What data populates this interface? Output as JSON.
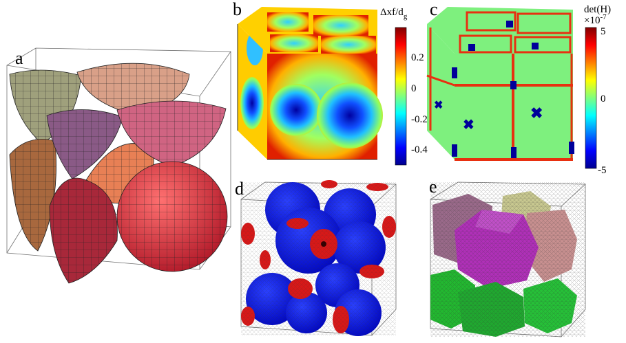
{
  "panels": {
    "a": {
      "label": "a"
    },
    "b": {
      "label": "b"
    },
    "c": {
      "label": "c"
    },
    "d": {
      "label": "d"
    },
    "e": {
      "label": "e"
    }
  },
  "colorbar_b": {
    "title": "Δxf/d",
    "title_sub": "g",
    "ticks": [
      "0.2",
      "0",
      "-0.2",
      "-0.4"
    ]
  },
  "colorbar_c": {
    "title": "det(H)",
    "exponent_base": "×10",
    "exponent": "-7",
    "ticks": [
      "5",
      "0",
      "-5"
    ]
  },
  "colors": {
    "jet_low": "#00008f",
    "jet_mid": "#7fff7f",
    "jet_high": "#800000",
    "sphere_blue": "#0a10e8",
    "sphere_red": "#d81818",
    "grain_purple": "#b030b8",
    "grain_green": "#22b830",
    "grain_pink": "#c89090",
    "grain_khaki": "#c8c890",
    "grain_mauve": "#9a6a8a"
  }
}
